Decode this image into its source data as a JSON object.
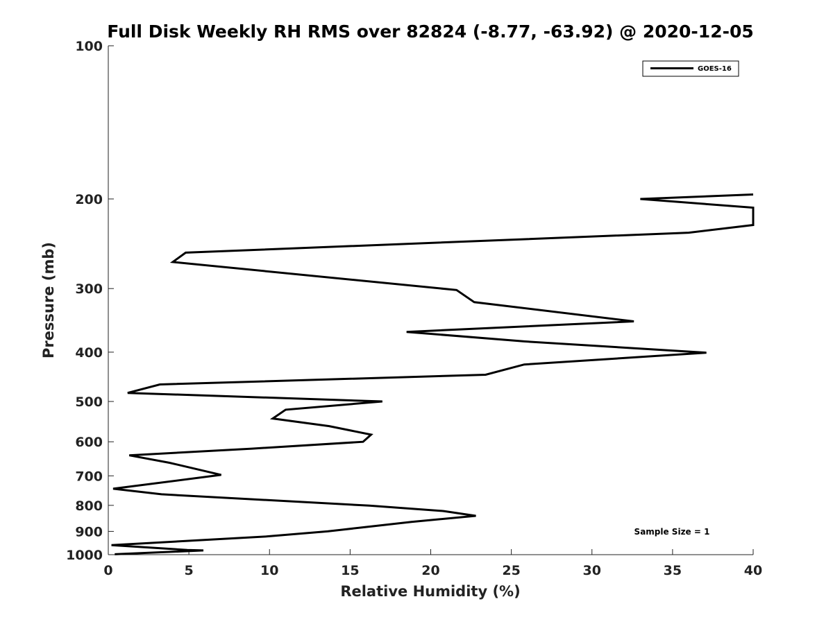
{
  "chart_data": {
    "type": "line",
    "title": "Full Disk Weekly RH RMS over 82824 (-8.77, -63.92) @ 2020-12-05",
    "xlabel": "Relative Humidity (%)",
    "ylabel": "Pressure (mb)",
    "xlim": [
      0,
      40
    ],
    "ylim": [
      100,
      1000
    ],
    "y_scale": "log",
    "y_reversed": true,
    "x_ticks": [
      0,
      5,
      10,
      15,
      20,
      25,
      30,
      35,
      40
    ],
    "y_ticks": [
      100,
      200,
      300,
      400,
      500,
      600,
      700,
      800,
      900,
      1000
    ],
    "grid": false,
    "legend_position": "top-right",
    "annotation": "Sample Size = 1",
    "series": [
      {
        "name": "GOES-16",
        "color": "#000000",
        "points": [
          [
            40,
            196
          ],
          [
            33,
            200
          ],
          [
            40,
            208
          ],
          [
            40,
            225
          ],
          [
            36,
            233
          ],
          [
            4.8,
            255
          ],
          [
            4,
            266
          ],
          [
            21.6,
            302
          ],
          [
            22.7,
            319
          ],
          [
            32.6,
            348
          ],
          [
            18.5,
            365
          ],
          [
            25.8,
            381
          ],
          [
            37.1,
            401
          ],
          [
            25.8,
            423
          ],
          [
            23.4,
            443
          ],
          [
            3.2,
            463
          ],
          [
            1.2,
            481
          ],
          [
            17,
            500
          ],
          [
            11,
            519
          ],
          [
            10.2,
            540
          ],
          [
            13.7,
            559
          ],
          [
            16.3,
            581
          ],
          [
            15.8,
            600
          ],
          [
            8.9,
            619
          ],
          [
            1.3,
            638
          ],
          [
            3.8,
            660
          ],
          [
            7,
            697
          ],
          [
            0.3,
            742
          ],
          [
            3.3,
            761
          ],
          [
            16.2,
            801
          ],
          [
            20.8,
            821
          ],
          [
            22.8,
            839
          ],
          [
            18.8,
            862
          ],
          [
            13.6,
            900
          ],
          [
            9.8,
            921
          ],
          [
            4.8,
            940
          ],
          [
            0.2,
            958
          ],
          [
            4.9,
            979
          ],
          [
            5.9,
            981
          ],
          [
            0.4,
            998
          ]
        ]
      }
    ]
  }
}
